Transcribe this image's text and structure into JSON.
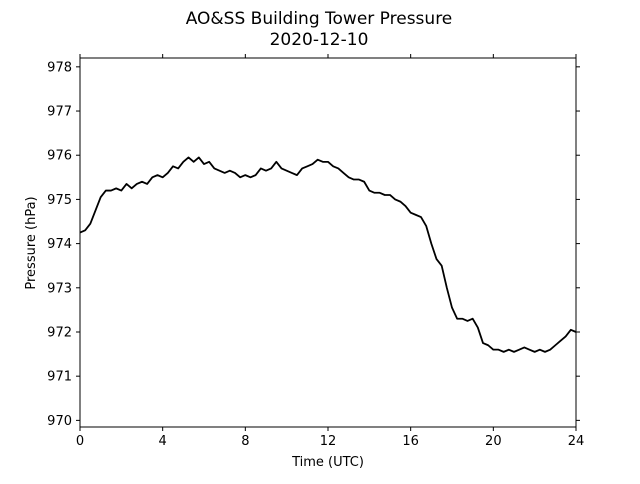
{
  "chart_data": {
    "type": "line",
    "title": "AO&SS Building Tower Pressure",
    "subtitle": "2020-12-10",
    "xlabel": "Time (UTC)",
    "ylabel": "Pressure (hPa)",
    "xlim": [
      0,
      24
    ],
    "ylim": [
      969.85,
      978.2
    ],
    "xticks": [
      0,
      4,
      8,
      12,
      16,
      20,
      24
    ],
    "yticks": [
      970,
      971,
      972,
      973,
      974,
      975,
      976,
      977,
      978
    ],
    "grid": false,
    "legend": "none",
    "line_color": "#000000",
    "series": [
      {
        "x": [
          0,
          0.25,
          0.5,
          0.75,
          1.0,
          1.25,
          1.5,
          1.75,
          2.0,
          2.25,
          2.5,
          2.75,
          3.0,
          3.25,
          3.5,
          3.75,
          4.0,
          4.25,
          4.5,
          4.75,
          5.0,
          5.25,
          5.5,
          5.75,
          6.0,
          6.25,
          6.5,
          6.75,
          7.0,
          7.25,
          7.5,
          7.75,
          8.0,
          8.25,
          8.5,
          8.75,
          9.0,
          9.25,
          9.5,
          9.75,
          10.0,
          10.25,
          10.5,
          10.75,
          11.0,
          11.25,
          11.5,
          11.75,
          12.0,
          12.25,
          12.5,
          12.75,
          13.0,
          13.25,
          13.5,
          13.75,
          14.0,
          14.25,
          14.5,
          14.75,
          15.0,
          15.25,
          15.5,
          15.75,
          16.0,
          16.25,
          16.5,
          16.75,
          17.0,
          17.25,
          17.5,
          17.75,
          18.0,
          18.25,
          18.5,
          18.75,
          19.0,
          19.25,
          19.5,
          19.75,
          20.0,
          20.25,
          20.5,
          20.75,
          21.0,
          21.25,
          21.5,
          21.75,
          22.0,
          22.25,
          22.5,
          22.75,
          23.0,
          23.25,
          23.5,
          23.75,
          24.0
        ],
        "values": [
          974.25,
          974.3,
          974.45,
          974.75,
          975.05,
          975.2,
          975.2,
          975.25,
          975.2,
          975.35,
          975.25,
          975.35,
          975.4,
          975.35,
          975.5,
          975.55,
          975.5,
          975.6,
          975.75,
          975.7,
          975.85,
          975.95,
          975.85,
          975.95,
          975.8,
          975.85,
          975.7,
          975.65,
          975.6,
          975.65,
          975.6,
          975.5,
          975.55,
          975.5,
          975.55,
          975.7,
          975.65,
          975.7,
          975.85,
          975.7,
          975.65,
          975.6,
          975.55,
          975.7,
          975.75,
          975.8,
          975.9,
          975.85,
          975.85,
          975.75,
          975.7,
          975.6,
          975.5,
          975.45,
          975.45,
          975.4,
          975.2,
          975.15,
          975.15,
          975.1,
          975.1,
          975.0,
          974.95,
          974.85,
          974.7,
          974.65,
          974.6,
          974.4,
          974.0,
          973.65,
          973.5,
          973.0,
          972.55,
          972.3,
          972.3,
          972.25,
          972.3,
          972.1,
          971.75,
          971.7,
          971.6,
          971.6,
          971.55,
          971.6,
          971.55,
          971.6,
          971.65,
          971.6,
          971.55,
          971.6,
          971.55,
          971.6,
          971.7,
          971.8,
          971.9,
          972.05,
          972.0
        ]
      }
    ]
  }
}
